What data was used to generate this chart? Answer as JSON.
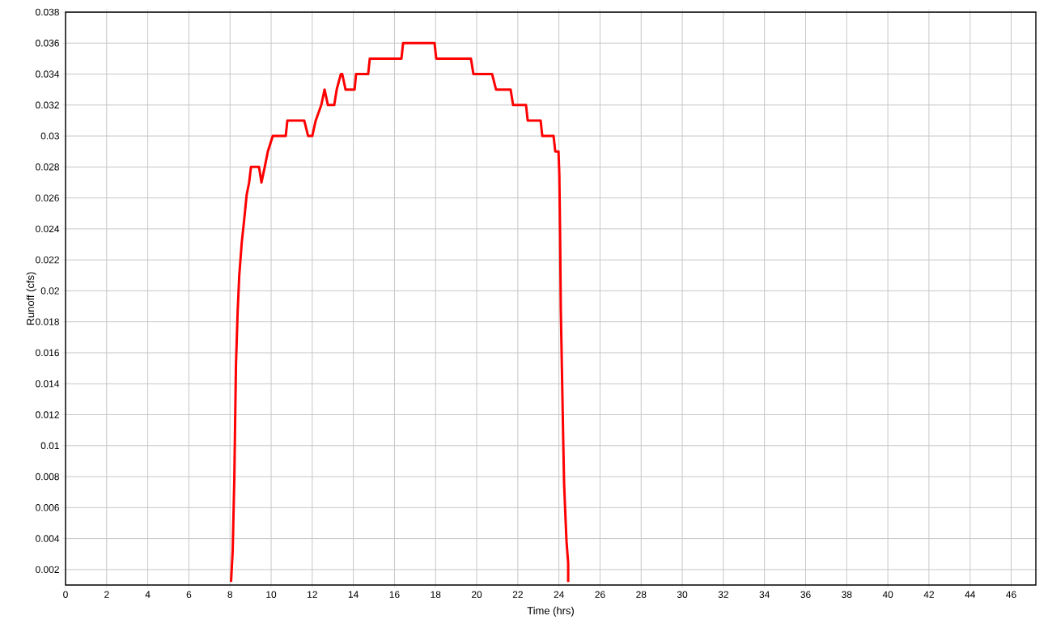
{
  "chart_data": {
    "type": "line",
    "xlabel": "Time (hrs)",
    "ylabel": "Runoff (cfs)",
    "xlim": [
      0,
      47.2
    ],
    "ylim": [
      0.001,
      0.038
    ],
    "xticks": [
      0,
      2,
      4,
      6,
      8,
      10,
      12,
      14,
      16,
      18,
      20,
      22,
      24,
      26,
      28,
      30,
      32,
      34,
      36,
      38,
      40,
      42,
      44,
      46
    ],
    "yticks": [
      0.002,
      0.004,
      0.006,
      0.008,
      0.01,
      0.012,
      0.014,
      0.016,
      0.018,
      0.02,
      0.022,
      0.024,
      0.026,
      0.028,
      0.03,
      0.032,
      0.034,
      0.036,
      0.038
    ],
    "grid": true,
    "line_style": "solid",
    "series": [
      {
        "color": "#ff0000",
        "x": [
          8.05,
          8.13,
          8.21,
          8.25,
          8.29,
          8.37,
          8.45,
          8.57,
          8.69,
          8.81,
          8.93,
          9.02,
          9.41,
          9.53,
          9.69,
          9.84,
          10.08,
          10.71,
          10.79,
          11.61,
          11.8,
          12.0,
          12.17,
          12.44,
          12.6,
          12.76,
          13.07,
          13.19,
          13.39,
          13.46,
          13.62,
          14.06,
          14.13,
          14.72,
          14.8,
          16.34,
          16.42,
          17.95,
          18.03,
          19.72,
          19.84,
          20.75,
          20.94,
          21.65,
          21.77,
          22.4,
          22.48,
          23.11,
          23.19,
          23.74,
          23.82,
          23.98,
          24.02,
          24.06,
          24.09,
          24.21,
          24.25,
          24.33,
          24.37,
          24.45,
          24.45
        ],
        "values": [
          0.0012,
          0.0032,
          0.0079,
          0.0116,
          0.0152,
          0.0186,
          0.021,
          0.0231,
          0.0246,
          0.0262,
          0.027,
          0.028,
          0.028,
          0.027,
          0.028,
          0.029,
          0.03,
          0.03,
          0.031,
          0.031,
          0.03,
          0.03,
          0.031,
          0.032,
          0.033,
          0.032,
          0.032,
          0.033,
          0.034,
          0.034,
          0.033,
          0.033,
          0.034,
          0.034,
          0.035,
          0.035,
          0.036,
          0.036,
          0.035,
          0.035,
          0.034,
          0.034,
          0.033,
          0.033,
          0.032,
          0.032,
          0.031,
          0.031,
          0.03,
          0.03,
          0.029,
          0.029,
          0.0275,
          0.0233,
          0.0189,
          0.0103,
          0.0076,
          0.005,
          0.0038,
          0.0024,
          0.0012
        ]
      }
    ]
  }
}
